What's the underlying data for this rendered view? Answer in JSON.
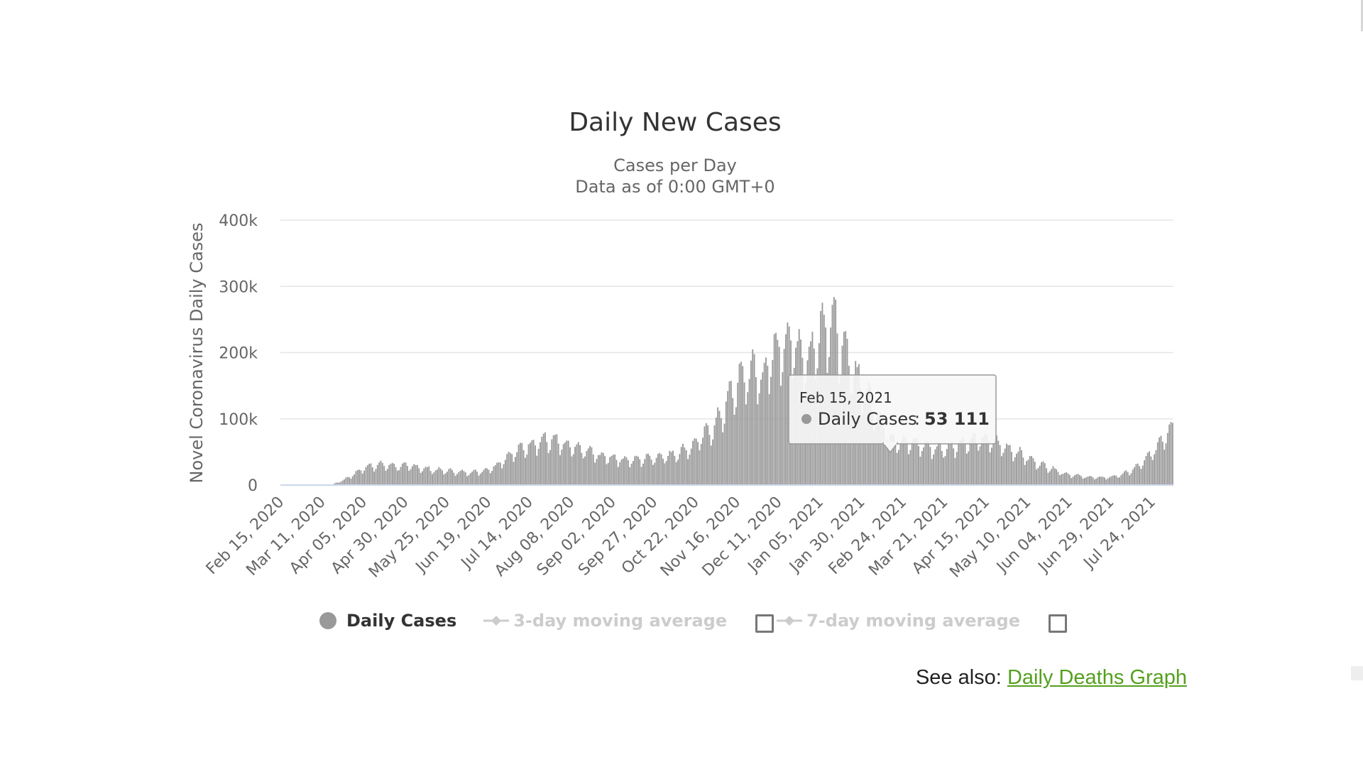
{
  "chart_data": {
    "type": "bar",
    "title": "Daily New Cases",
    "subtitle_lines": [
      "Cases per Day",
      "Data as of 0:00 GMT+0"
    ],
    "ylabel": "Novel Coronavirus Daily Cases",
    "ylim": [
      0,
      400000
    ],
    "yticks": [
      0,
      100000,
      200000,
      300000,
      400000
    ],
    "ytick_labels": [
      "0",
      "100k",
      "200k",
      "300k",
      "400k"
    ],
    "grid": true,
    "x_start": "2020-02-15",
    "x_end": "2021-08-05",
    "xtick_labels": [
      "Feb 15, 2020",
      "Mar 11, 2020",
      "Apr 05, 2020",
      "Apr 30, 2020",
      "May 25, 2020",
      "Jun 19, 2020",
      "Jul 14, 2020",
      "Aug 08, 2020",
      "Sep 02, 2020",
      "Sep 27, 2020",
      "Oct 22, 2020",
      "Nov 16, 2020",
      "Dec 11, 2020",
      "Jan 05, 2021",
      "Jan 30, 2021",
      "Feb 24, 2021",
      "Mar 21, 2021",
      "Apr 15, 2021",
      "May 10, 2021",
      "Jun 04, 2021",
      "Jun 29, 2021",
      "Jul 24, 2021"
    ],
    "series": [
      {
        "name": "Daily Cases",
        "color": "#999999",
        "weekly_approx": [
          {
            "week_of": "2020-02-15",
            "value": 0
          },
          {
            "week_of": "2020-02-22",
            "value": 0
          },
          {
            "week_of": "2020-02-29",
            "value": 0
          },
          {
            "week_of": "2020-03-07",
            "value": 0
          },
          {
            "week_of": "2020-03-14",
            "value": 1000
          },
          {
            "week_of": "2020-03-21",
            "value": 8000
          },
          {
            "week_of": "2020-03-28",
            "value": 18000
          },
          {
            "week_of": "2020-04-04",
            "value": 28000
          },
          {
            "week_of": "2020-04-11",
            "value": 30000
          },
          {
            "week_of": "2020-04-18",
            "value": 29000
          },
          {
            "week_of": "2020-04-25",
            "value": 28000
          },
          {
            "week_of": "2020-05-02",
            "value": 28000
          },
          {
            "week_of": "2020-05-09",
            "value": 24000
          },
          {
            "week_of": "2020-05-16",
            "value": 22000
          },
          {
            "week_of": "2020-05-23",
            "value": 21000
          },
          {
            "week_of": "2020-05-30",
            "value": 19000
          },
          {
            "week_of": "2020-06-06",
            "value": 19000
          },
          {
            "week_of": "2020-06-13",
            "value": 21000
          },
          {
            "week_of": "2020-06-20",
            "value": 28000
          },
          {
            "week_of": "2020-06-27",
            "value": 42000
          },
          {
            "week_of": "2020-07-04",
            "value": 52000
          },
          {
            "week_of": "2020-07-11",
            "value": 60000
          },
          {
            "week_of": "2020-07-18",
            "value": 66000
          },
          {
            "week_of": "2020-07-25",
            "value": 66000
          },
          {
            "week_of": "2020-08-01",
            "value": 58000
          },
          {
            "week_of": "2020-08-08",
            "value": 54000
          },
          {
            "week_of": "2020-08-15",
            "value": 50000
          },
          {
            "week_of": "2020-08-22",
            "value": 43000
          },
          {
            "week_of": "2020-08-29",
            "value": 41000
          },
          {
            "week_of": "2020-09-05",
            "value": 38000
          },
          {
            "week_of": "2020-09-12",
            "value": 37000
          },
          {
            "week_of": "2020-09-19",
            "value": 40000
          },
          {
            "week_of": "2020-09-26",
            "value": 42000
          },
          {
            "week_of": "2020-10-03",
            "value": 44000
          },
          {
            "week_of": "2020-10-10",
            "value": 50000
          },
          {
            "week_of": "2020-10-17",
            "value": 58000
          },
          {
            "week_of": "2020-10-24",
            "value": 75000
          },
          {
            "week_of": "2020-10-31",
            "value": 90000
          },
          {
            "week_of": "2020-11-07",
            "value": 125000
          },
          {
            "week_of": "2020-11-14",
            "value": 155000
          },
          {
            "week_of": "2020-11-21",
            "value": 170000
          },
          {
            "week_of": "2020-11-28",
            "value": 160000
          },
          {
            "week_of": "2020-12-05",
            "value": 195000
          },
          {
            "week_of": "2020-12-12",
            "value": 215000
          },
          {
            "week_of": "2020-12-19",
            "value": 205000
          },
          {
            "week_of": "2020-12-26",
            "value": 185000
          },
          {
            "week_of": "2021-01-02",
            "value": 235000
          },
          {
            "week_of": "2021-01-09",
            "value": 245000
          },
          {
            "week_of": "2021-01-16",
            "value": 195000
          },
          {
            "week_of": "2021-01-23",
            "value": 165000
          },
          {
            "week_of": "2021-01-30",
            "value": 135000
          },
          {
            "week_of": "2021-02-06",
            "value": 100000
          },
          {
            "week_of": "2021-02-13",
            "value": 70000
          },
          {
            "week_of": "2021-02-20",
            "value": 65000
          },
          {
            "week_of": "2021-02-27",
            "value": 62000
          },
          {
            "week_of": "2021-03-06",
            "value": 58000
          },
          {
            "week_of": "2021-03-13",
            "value": 54000
          },
          {
            "week_of": "2021-03-20",
            "value": 55000
          },
          {
            "week_of": "2021-03-27",
            "value": 62000
          },
          {
            "week_of": "2021-04-03",
            "value": 65000
          },
          {
            "week_of": "2021-04-10",
            "value": 68000
          },
          {
            "week_of": "2021-04-17",
            "value": 63000
          },
          {
            "week_of": "2021-04-24",
            "value": 55000
          },
          {
            "week_of": "2021-05-01",
            "value": 48000
          },
          {
            "week_of": "2021-05-08",
            "value": 38000
          },
          {
            "week_of": "2021-05-15",
            "value": 30000
          },
          {
            "week_of": "2021-05-22",
            "value": 24000
          },
          {
            "week_of": "2021-05-29",
            "value": 17000
          },
          {
            "week_of": "2021-06-05",
            "value": 14000
          },
          {
            "week_of": "2021-06-12",
            "value": 12000
          },
          {
            "week_of": "2021-06-19",
            "value": 11000
          },
          {
            "week_of": "2021-06-26",
            "value": 12000
          },
          {
            "week_of": "2021-07-03",
            "value": 16000
          },
          {
            "week_of": "2021-07-10",
            "value": 24000
          },
          {
            "week_of": "2021-07-17",
            "value": 38000
          },
          {
            "week_of": "2021-07-24",
            "value": 58000
          },
          {
            "week_of": "2021-07-31",
            "value": 85000
          }
        ]
      },
      {
        "name": "3-day moving average",
        "visible": false
      },
      {
        "name": "7-day moving average",
        "visible": false
      }
    ],
    "tooltip": {
      "date": "Feb 15, 2021",
      "series_label": "Daily Cases",
      "value_text": "53 111",
      "value": 53111
    },
    "legend_position": "bottom"
  },
  "legend": {
    "items": [
      {
        "label": "Daily Cases",
        "active": true
      },
      {
        "label": "3-day moving average",
        "active": false,
        "checked": false
      },
      {
        "label": "7-day moving average",
        "active": false,
        "checked": false
      }
    ]
  },
  "footer": {
    "see_also_label": "See also:",
    "link_text": "Daily Deaths Graph"
  },
  "colors": {
    "bar": "#999999",
    "grid": "#e6e6e6",
    "link": "#54a01e",
    "axis_baseline": "#ccd6eb"
  }
}
